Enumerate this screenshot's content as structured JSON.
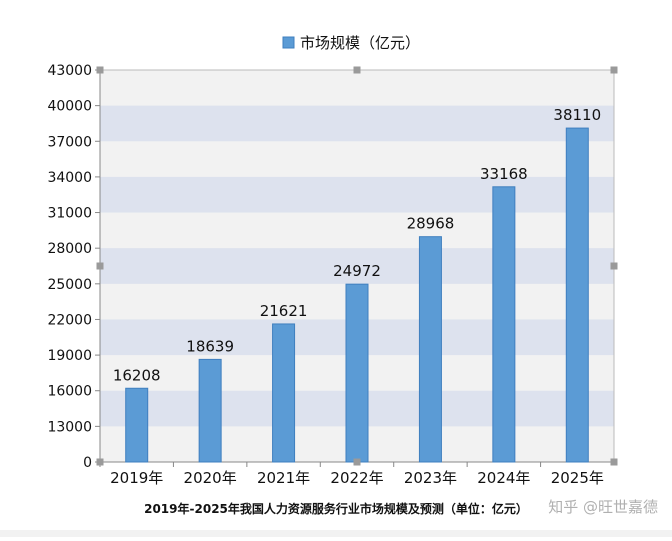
{
  "chart_data": {
    "type": "bar",
    "title": "",
    "xlabel": "",
    "ylabel": "",
    "legend": {
      "label": "市场规模（亿元）",
      "position": "top"
    },
    "categories": [
      "2019年",
      "2020年",
      "2021年",
      "2022年",
      "2023年",
      "2024年",
      "2025年"
    ],
    "series": [
      {
        "name": "市场规模（亿元）",
        "values": [
          16208,
          18639,
          21621,
          24972,
          28968,
          33168,
          38110
        ]
      }
    ],
    "value_labels": [
      "16208",
      "18639",
      "21621",
      "24972",
      "28968",
      "33168",
      "38110"
    ],
    "yticks": [
      0,
      13000,
      16000,
      19000,
      22000,
      25000,
      28000,
      31000,
      34000,
      37000,
      40000,
      43000
    ],
    "ytick_labels": [
      "0",
      "13000",
      "16000",
      "19000",
      "22000",
      "25000",
      "28000",
      "31000",
      "34000",
      "37000",
      "40000",
      "43000"
    ],
    "ylim": [
      0,
      43000
    ],
    "axis_break": {
      "visual_zero_to": 13000
    },
    "grid": "alternating-bands"
  },
  "caption": "2019年-2025年我国人力资源服务行业市场规模及预测（单位：亿元）",
  "watermark": "知乎 @旺世嘉德",
  "colors": {
    "bar": "#5b9bd5",
    "bar_edge": "#3f7fbf",
    "band": "#dde2ee",
    "plot_bg": "#f2f2f2",
    "axis": "#888888",
    "handle": "#9a9a9a",
    "text": "#111111"
  }
}
